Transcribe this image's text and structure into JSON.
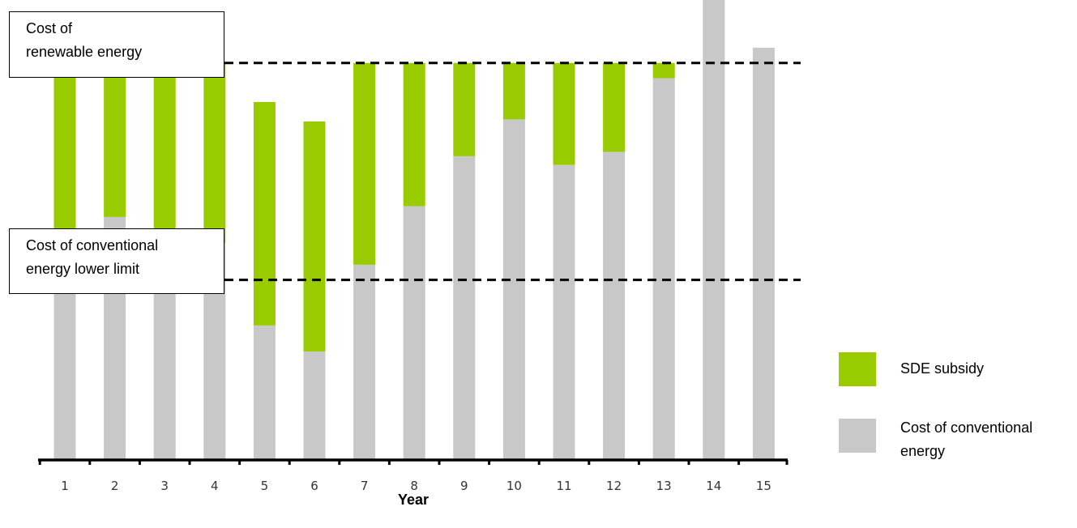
{
  "chart_data": {
    "type": "bar",
    "stacked": true,
    "categories": [
      "1",
      "2",
      "3",
      "4",
      "5",
      "6",
      "7",
      "8",
      "9",
      "10",
      "11",
      "12",
      "13",
      "14",
      "15"
    ],
    "series": [
      {
        "name": "Cost of conventional energy",
        "color": "#c8c8c8",
        "values": [
          100,
          112,
          100,
          100,
          62,
          50,
          90,
          117,
          140,
          157,
          136,
          142,
          176,
          212,
          190
        ]
      },
      {
        "name": "SDE subsidy",
        "color": "#99cc00",
        "values": [
          83,
          71,
          83,
          83,
          103,
          106,
          93,
          66,
          43,
          26,
          47,
          41,
          7,
          0,
          0
        ]
      }
    ],
    "xlabel": "Year",
    "ylabel": "",
    "ylim": [
      0,
      212
    ],
    "grid": false,
    "legend_position": "right",
    "reference_lines": [
      {
        "value": 183,
        "label_lines": [
          "Cost of",
          "renewable energy"
        ]
      },
      {
        "value": 83,
        "label_lines": [
          "Cost of conventional",
          "energy lower limit"
        ]
      }
    ]
  }
}
